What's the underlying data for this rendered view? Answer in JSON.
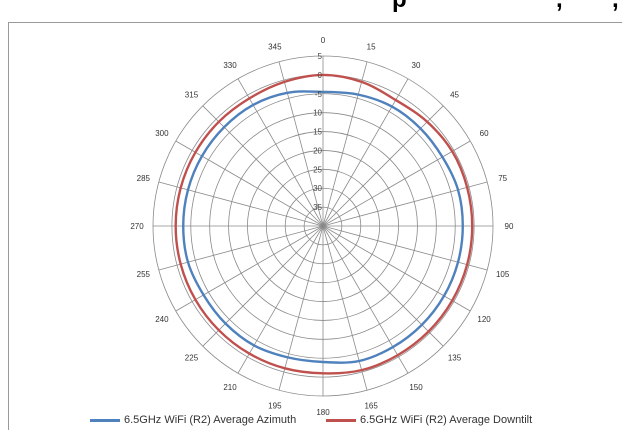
{
  "header_fragment": {
    "text_left": "p",
    "text_right": ",",
    "text_far_right": ","
  },
  "chart_data": {
    "type": "polar-line",
    "angle_ticks": [
      "0",
      "15",
      "30",
      "45",
      "60",
      "75",
      "90",
      "105",
      "120",
      "135",
      "150",
      "165",
      "180",
      "195",
      "210",
      "225",
      "240",
      "255",
      "270",
      "285",
      "300",
      "315",
      "330",
      "345"
    ],
    "radial_ticks": [
      "5",
      "0",
      "-5",
      "10",
      "15",
      "20",
      "25",
      "30",
      "35",
      "40"
    ],
    "radial_range": [
      -40,
      5
    ],
    "angle_direction": "clockwise",
    "zero_at": "top",
    "grid": true,
    "legend_position": "bottom",
    "series": [
      {
        "name": "6.5GHz WiFi (R2) Average Azimuth",
        "color": "#4f81bd",
        "angles": [
          0,
          15,
          30,
          45,
          60,
          75,
          90,
          105,
          120,
          135,
          150,
          165,
          180,
          195,
          210,
          225,
          240,
          255,
          270,
          285,
          300,
          315,
          330,
          345
        ],
        "values": [
          -4.5,
          -4,
          -3.5,
          -3.5,
          -3.5,
          -3,
          -3,
          -3,
          -3,
          -3,
          -3,
          -3,
          -4,
          -4,
          -3.5,
          -3.5,
          -3.5,
          -3,
          -3,
          -3,
          -3,
          -3,
          -3,
          -3.5
        ]
      },
      {
        "name": "6.5GHz WiFi (R2) Average Downtilt",
        "color": "#c0504d",
        "angles": [
          0,
          15,
          30,
          45,
          60,
          75,
          90,
          105,
          120,
          135,
          150,
          165,
          180,
          195,
          210,
          225,
          240,
          255,
          270,
          285,
          300,
          315,
          330,
          345
        ],
        "values": [
          0,
          -0.5,
          -1.5,
          -1,
          -0.5,
          -0.5,
          -0.5,
          -0.5,
          -0.5,
          -0.5,
          -0.5,
          -0.5,
          -1,
          -1,
          -1,
          -1,
          -1,
          -1,
          -1,
          -1,
          -1,
          -1,
          -1,
          -0.5
        ]
      }
    ]
  }
}
